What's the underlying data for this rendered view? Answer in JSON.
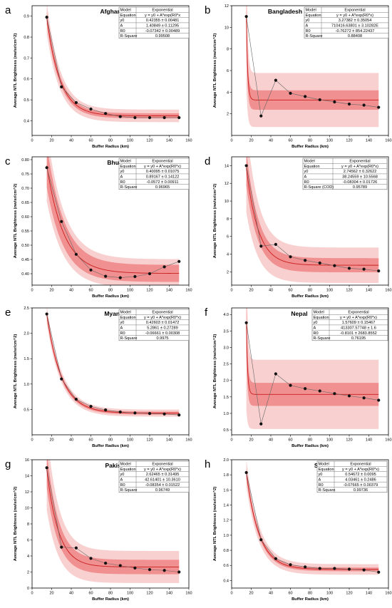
{
  "chart_data": [
    {
      "type": "scatter",
      "panel": "a",
      "title": "Afghanistan",
      "xlabel": "Buffer Radius (km)",
      "ylabel": "Average NTL Brightness (nw/sr/cm^2)",
      "xlim": [
        0,
        160
      ],
      "ylim": [
        0.33,
        0.95
      ],
      "xticks": [
        0,
        20,
        40,
        60,
        80,
        100,
        120,
        140,
        160
      ],
      "yticks": [
        0.4,
        0.5,
        0.6,
        0.7,
        0.8,
        0.9
      ],
      "ytick_labels": [
        "0.4",
        "0.5",
        "0.6",
        "0.7",
        "0.8",
        "0.9"
      ],
      "x": [
        15,
        30,
        45,
        60,
        75,
        90,
        105,
        120,
        135,
        150
      ],
      "y": [
        0.895,
        0.562,
        0.487,
        0.456,
        0.435,
        0.42,
        0.415,
        0.415,
        0.415,
        0.415
      ],
      "fit": {
        "y0": 0.42355,
        "A": 1.40849,
        "R0": -0.07342
      },
      "band": {
        "conf": 0.012,
        "pred": 0.03
      },
      "table": [
        [
          "Model",
          "Exponential"
        ],
        [
          "Equation",
          "y = y0 + A*exp(R0*x"
        ],
        [
          "y0",
          "0.42355 ± 0.00481"
        ],
        [
          "A",
          "1.40849 ± 0.11295"
        ],
        [
          "R0",
          "-0.07342 ± 0.00489"
        ],
        [
          "R-Square",
          "0.99508"
        ]
      ]
    },
    {
      "type": "scatter",
      "panel": "b",
      "title": "Bangladesh",
      "xlabel": "Buffer Radius (km)",
      "ylabel": "Average NTL Brightness (nw/sr/cm^2)",
      "xlim": [
        0,
        160
      ],
      "ylim": [
        0,
        12
      ],
      "xticks": [
        0,
        20,
        40,
        60,
        80,
        100,
        120,
        140,
        160
      ],
      "yticks": [
        2,
        4,
        6,
        8,
        10,
        12
      ],
      "ytick_labels": [
        "2",
        "4",
        "6",
        "8",
        "10",
        "12"
      ],
      "x": [
        15,
        30,
        45,
        60,
        75,
        90,
        105,
        120,
        135,
        150
      ],
      "y": [
        11.0,
        1.8,
        5.1,
        3.9,
        3.6,
        3.3,
        3.1,
        2.9,
        2.8,
        2.6
      ],
      "fit": {
        "y0": 3.27382,
        "A": 710416.63801,
        "R0": -0.76272
      },
      "band": {
        "conf": 0.9,
        "pred": 2.5
      },
      "table": [
        [
          "Model",
          "Exponential"
        ],
        [
          "Equation",
          "y = y0 + A*exp(R0*x)"
        ],
        [
          "y0",
          "3.27382 ± 0.35054"
        ],
        [
          "A",
          "710416.63801 ± 3.10282E"
        ],
        [
          "R0",
          "-0.76272 ± 854.22437"
        ],
        [
          "R-Square",
          "0.88408"
        ]
      ]
    },
    {
      "type": "scatter",
      "panel": "c",
      "title": "Bhutan",
      "xlabel": "Buffer Radius (km)",
      "ylabel": "Average NTL Brightness (nw/sr/cm^2)",
      "xlim": [
        0,
        160
      ],
      "ylim": [
        0.36,
        0.81
      ],
      "xticks": [
        0,
        20,
        40,
        60,
        80,
        100,
        120,
        140,
        160
      ],
      "yticks": [
        0.4,
        0.45,
        0.5,
        0.55,
        0.6,
        0.65,
        0.7,
        0.75,
        0.8
      ],
      "ytick_labels": [
        "0.40",
        "0.45",
        "0.50",
        "0.55",
        "0.60",
        "0.65",
        "0.70",
        "0.75",
        "0.80"
      ],
      "x": [
        15,
        30,
        45,
        60,
        75,
        90,
        105,
        120,
        135,
        150
      ],
      "y": [
        0.772,
        0.583,
        0.468,
        0.413,
        0.391,
        0.386,
        0.39,
        0.4,
        0.424,
        0.443
      ],
      "fit": {
        "y0": 0.40095,
        "A": 0.89167,
        "R0": -0.0572
      },
      "band": {
        "conf": 0.03,
        "pred": 0.05
      },
      "table": [
        [
          "Model",
          "Exponential"
        ],
        [
          "Equation",
          "y = y0 + A*exp(R0*x)"
        ],
        [
          "y0",
          "0.40095 ± 0.01075"
        ],
        [
          "A",
          "0.89167 ± 0.14122"
        ],
        [
          "R0",
          "-0.0572 ± 0.00911"
        ],
        [
          "R-Square",
          "0.96965"
        ]
      ]
    },
    {
      "type": "scatter",
      "panel": "d",
      "title": "India",
      "xlabel": "Buffer Radius (km)",
      "ylabel": "Average NTL Brightness (nw/sr/cm^2)",
      "xlim": [
        0,
        160
      ],
      "ylim": [
        0.5,
        15
      ],
      "xticks": [
        0,
        20,
        40,
        60,
        80,
        100,
        120,
        140,
        160
      ],
      "yticks": [
        2,
        4,
        6,
        8,
        10,
        12,
        14
      ],
      "ytick_labels": [
        "2",
        "4",
        "6",
        "8",
        "10",
        "12",
        "14"
      ],
      "x": [
        15,
        30,
        45,
        60,
        75,
        90,
        105,
        120,
        135,
        150
      ],
      "y": [
        14.0,
        4.9,
        5.1,
        3.7,
        3.3,
        3.0,
        2.7,
        2.4,
        2.3,
        2.1
      ],
      "fit": {
        "y0": 2.74562,
        "A": 38.24559,
        "R0": -0.08304
      },
      "band": {
        "conf": 0.8,
        "pred": 2.0
      },
      "table": [
        [
          "Model",
          "Exponential"
        ],
        [
          "Equation",
          "y = y0 + A*exp(R0*x)"
        ],
        [
          "y0",
          "2.74562 ± 0.32622"
        ],
        [
          "A",
          "38.24559 ± 10.5568"
        ],
        [
          "R0",
          "-0.08304 ± 0.01726"
        ],
        [
          "R-Square (COD)",
          "0.95789"
        ]
      ]
    },
    {
      "type": "scatter",
      "panel": "e",
      "title": "Myanmar",
      "xlabel": "Buffer Radius (km)",
      "ylabel": "Average NTL Brightness (nw/sr/cm^2)",
      "xlim": [
        0,
        160
      ],
      "ylim": [
        0,
        2.5
      ],
      "xticks": [
        0,
        20,
        40,
        60,
        80,
        100,
        120,
        140,
        160
      ],
      "yticks": [
        0.5,
        1.0,
        1.5,
        2.0,
        2.5
      ],
      "ytick_labels": [
        "0.5",
        "1.0",
        "1.5",
        "2.0",
        "2.5"
      ],
      "x": [
        15,
        30,
        45,
        60,
        75,
        90,
        105,
        120,
        135,
        150
      ],
      "y": [
        2.38,
        1.1,
        0.7,
        0.56,
        0.49,
        0.45,
        0.43,
        0.42,
        0.41,
        0.39
      ],
      "fit": {
        "y0": 0.42603,
        "A": 5.2861,
        "R0": -0.06661
      },
      "band": {
        "conf": 0.03,
        "pred": 0.07
      },
      "table": [
        [
          "Model",
          "Exponential"
        ],
        [
          "Equation",
          "y = y0 + A*exp(R0*x)"
        ],
        [
          "y0",
          "0.42603 ± 0.01472"
        ],
        [
          "A",
          "5.2861 ± 0.27289"
        ],
        [
          "R0",
          "-0.06661 ± 0.00308"
        ],
        [
          "R-Square",
          "0.9975"
        ]
      ]
    },
    {
      "type": "scatter",
      "panel": "f",
      "title": "Nepal",
      "xlabel": "Buffer Radius (km)",
      "ylabel": "Average NTL Brightness (nw/sr/cm^2)",
      "xlim": [
        0,
        160
      ],
      "ylim": [
        0.35,
        4.2
      ],
      "xticks": [
        0,
        20,
        40,
        60,
        80,
        100,
        120,
        140,
        160
      ],
      "yticks": [
        0.5,
        1.0,
        1.5,
        2.0,
        2.5,
        3.0,
        3.5,
        4.0
      ],
      "ytick_labels": [
        "0.5",
        "1.0",
        "1.5",
        "2.0",
        "2.5",
        "3.0",
        "3.5",
        "4.0"
      ],
      "x": [
        15,
        30,
        45,
        60,
        75,
        90,
        105,
        120,
        135,
        150
      ],
      "y": [
        3.75,
        0.68,
        2.2,
        1.85,
        1.75,
        1.68,
        1.6,
        1.53,
        1.47,
        1.4
      ],
      "fit": {
        "y0": 1.57609,
        "A": 413307.57748,
        "R0": -0.8101
      },
      "band": {
        "conf": 0.35,
        "pred": 1.05
      },
      "table": [
        [
          "Model",
          "Exponential"
        ],
        [
          "Equation",
          "y = y0 + A*exp(R0*x)"
        ],
        [
          "y0",
          "1.57609 ± 0.15467"
        ],
        [
          "A",
          "413307.57748 ± 1.6"
        ],
        [
          "R0",
          "-0.8101 ± 2683.8552"
        ],
        [
          "R-Square",
          "0.76195"
        ]
      ]
    },
    {
      "type": "scatter",
      "panel": "g",
      "title": "Pakistan",
      "xlabel": "Buffer Radius (km)",
      "ylabel": "Average NTL Brightness (nw/sr/cm^2)",
      "xlim": [
        0,
        160
      ],
      "ylim": [
        0,
        16
      ],
      "xticks": [
        0,
        20,
        40,
        60,
        80,
        100,
        120,
        140,
        160
      ],
      "yticks": [
        0,
        2,
        4,
        6,
        8,
        10,
        12,
        14,
        16
      ],
      "ytick_labels": [
        "0",
        "2",
        "4",
        "6",
        "8",
        "10",
        "12",
        "14",
        "16"
      ],
      "x": [
        15,
        30,
        45,
        60,
        75,
        90,
        105,
        120,
        135,
        150
      ],
      "y": [
        15.0,
        5.1,
        5.0,
        3.7,
        3.1,
        2.8,
        2.5,
        2.3,
        2.2,
        2.0
      ],
      "fit": {
        "y0": 2.62465,
        "A": 42.61401,
        "R0": -0.08354
      },
      "band": {
        "conf": 0.9,
        "pred": 2.0
      },
      "table": [
        [
          "Model",
          "Exponential"
        ],
        [
          "Equation",
          "y = y0 + A*exp(R0*x)"
        ],
        [
          "y0",
          "2.62465 ± 0.31495"
        ],
        [
          "A",
          "42.61401 ± 10.3610"
        ],
        [
          "R0",
          "-0.08354 ± 0.01522"
        ],
        [
          "R-Square",
          "0.96749"
        ]
      ]
    },
    {
      "type": "scatter",
      "panel": "h",
      "title": "Sri Lanka",
      "xlabel": "Buffer Radius (km)",
      "ylabel": "Average NTL Brightness (nw/sr/cm^2)",
      "xlim": [
        0,
        160
      ],
      "ylim": [
        0.3,
        2.0
      ],
      "xticks": [
        0,
        20,
        40,
        60,
        80,
        100,
        120,
        140,
        160
      ],
      "yticks": [
        0.4,
        0.6,
        0.8,
        1.0,
        1.2,
        1.4,
        1.6,
        1.8,
        2.0
      ],
      "ytick_labels": [
        "0.4",
        "0.6",
        "0.8",
        "1.0",
        "1.2",
        "1.4",
        "1.6",
        "1.8",
        "2.0"
      ],
      "x": [
        15,
        30,
        45,
        60,
        75,
        90,
        105,
        120,
        135,
        150
      ],
      "y": [
        1.83,
        0.94,
        0.69,
        0.61,
        0.58,
        0.56,
        0.56,
        0.55,
        0.54,
        0.51
      ],
      "fit": {
        "y0": 0.54672,
        "A": 4.03461,
        "R0": -0.07665
      },
      "band": {
        "conf": 0.025,
        "pred": 0.07
      },
      "table": [
        [
          "Model",
          "Exponential"
        ],
        [
          "Equation",
          "y = y0 + A*exp(R0*x)"
        ],
        [
          "y0",
          "0.54672 ± 0.0095"
        ],
        [
          "A",
          "4.03461 ± 0.2486"
        ],
        [
          "R0",
          "-0.07665 ± 0.00379"
        ],
        [
          "R-Square",
          "0.99736"
        ]
      ]
    }
  ]
}
